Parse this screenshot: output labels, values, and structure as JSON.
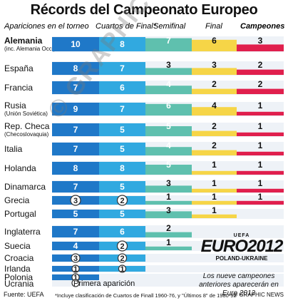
{
  "title": "Récords del Campeonato Europeo",
  "colors": {
    "apariciones": "#1f78c8",
    "cuartos": "#31a9e0",
    "semifinal": "#5fc0ae",
    "final": "#f6d547",
    "campeones": "#e01f4d",
    "background_band": "#eef2f7"
  },
  "headers": {
    "apariciones": "Apariciones en el torneo",
    "cuartos": "Cuartos de Final*",
    "semifinal": "Semifinal",
    "final": "Final",
    "campeones": "Campeones"
  },
  "chart_data": {
    "type": "bar",
    "title": "Récords del Campeonato Europeo",
    "series_names": [
      "Apariciones en el torneo",
      "Cuartos de Final*",
      "Semifinal",
      "Final",
      "Campeones"
    ],
    "rows": [
      {
        "country": "Alemania",
        "sub": "(inc. Alemania Occ.)",
        "bold": true,
        "apariciones": 10,
        "cuartos": 8,
        "semifinal": 7,
        "final": 6,
        "campeones": 3
      },
      {
        "country": "España",
        "sub": "",
        "apariciones": 8,
        "cuartos": 7,
        "semifinal": 3,
        "final": 3,
        "campeones": 2
      },
      {
        "country": "Francia",
        "sub": "",
        "apariciones": 7,
        "cuartos": 6,
        "semifinal": 4,
        "final": 2,
        "campeones": 2
      },
      {
        "country": "Rusia",
        "sub": "(Unión Soviética)",
        "apariciones": 9,
        "cuartos": 7,
        "semifinal": 6,
        "final": 4,
        "campeones": 1
      },
      {
        "country": "Rep. Checa",
        "sub": "(Checoslovaquia)",
        "apariciones": 7,
        "cuartos": 5,
        "semifinal": 5,
        "final": 2,
        "campeones": 1
      },
      {
        "country": "Italia",
        "sub": "",
        "apariciones": 7,
        "cuartos": 5,
        "semifinal": 4,
        "final": 2,
        "campeones": 1
      },
      {
        "country": "Holanda",
        "sub": "",
        "apariciones": 8,
        "cuartos": 8,
        "semifinal": 5,
        "final": 1,
        "campeones": 1
      },
      {
        "country": "Dinamarca",
        "sub": "",
        "apariciones": 7,
        "cuartos": 5,
        "semifinal": 3,
        "final": 1,
        "campeones": 1
      },
      {
        "country": "Grecia",
        "sub": "",
        "apariciones": 3,
        "apariciones_circle": true,
        "cuartos": 2,
        "cuartos_circle": true,
        "semifinal": 1,
        "final": 1,
        "campeones": 1
      },
      {
        "country": "Portugal",
        "sub": "",
        "apariciones": 5,
        "cuartos": 5,
        "semifinal": 3,
        "final": 1,
        "campeones": null
      },
      {
        "country": "Inglaterra",
        "sub": "",
        "apariciones": 7,
        "cuartos": 6,
        "semifinal": 2,
        "final": null,
        "campeones": null
      },
      {
        "country": "Suecia",
        "sub": "",
        "apariciones": 4,
        "cuartos": 2,
        "cuartos_circle": true,
        "semifinal": 1,
        "final": null,
        "campeones": null
      },
      {
        "country": "Croacia",
        "sub": "",
        "apariciones": 3,
        "apariciones_circle": true,
        "cuartos": 2,
        "cuartos_circle": true,
        "semifinal": null,
        "final": null,
        "campeones": null
      },
      {
        "country": "Irlanda",
        "sub": "",
        "apariciones": 1,
        "apariciones_circle": true,
        "cuartos": 1,
        "cuartos_circle": true,
        "semifinal": null,
        "final": null,
        "campeones": null
      },
      {
        "country": "Polonia",
        "sub": "",
        "apariciones": 1,
        "apariciones_circle": true,
        "cuartos": null,
        "semifinal": null,
        "final": null,
        "campeones": null
      },
      {
        "country": "Ucrania",
        "sub": "",
        "apariciones": null,
        "apariciones_legend": true,
        "cuartos": null,
        "semifinal": null,
        "final": null,
        "campeones": null
      }
    ]
  },
  "legend": {
    "primera_aparicion": "Primera aparición"
  },
  "logo": {
    "uefa": "UEFA",
    "euro": "EURO2012",
    "host": "POLAND-UKRAINE"
  },
  "note": "Los nueve campeones anteriores aparecerán en Euro 2012",
  "footer": {
    "source": "Fuente: UEFA",
    "footnote": "*Incluye clasificación de Cuartos de Finall 1960-76, y \"Últimos 8\" de 1980-92",
    "credit": "© GRAPHIC NEWS"
  },
  "watermark": "© GRAPHIC NEWS"
}
